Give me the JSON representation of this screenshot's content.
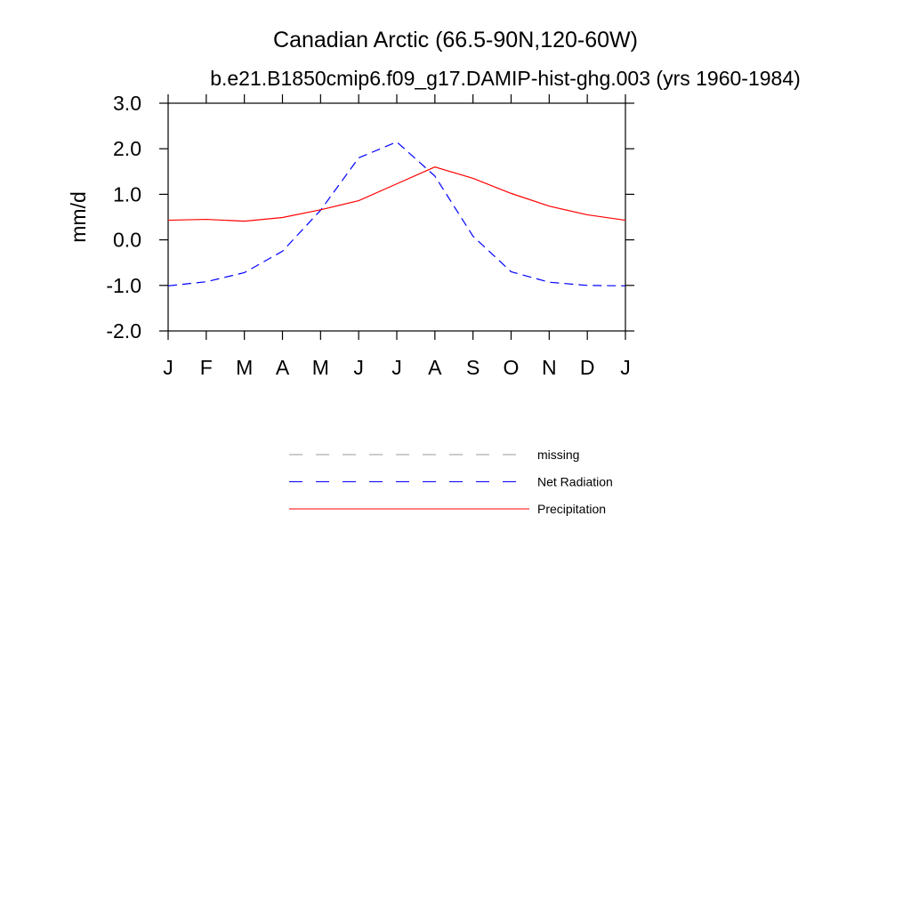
{
  "chart_data": {
    "type": "line",
    "title": "Canadian Arctic (66.5-90N,120-60W)",
    "subtitle": "b.e21.B1850cmip6.f09_g17.DAMIP-hist-ghg.003 (yrs 1960-1984)",
    "ylabel": "mm/d",
    "categories": [
      "J",
      "F",
      "M",
      "A",
      "M",
      "J",
      "J",
      "A",
      "S",
      "O",
      "N",
      "D",
      "J"
    ],
    "ylim": [
      -2.0,
      3.0
    ],
    "yticks": [
      {
        "value": 3,
        "label": "3.0"
      },
      {
        "value": 2,
        "label": "2.0"
      },
      {
        "value": 1,
        "label": "1.0"
      },
      {
        "value": 0,
        "label": "0.0"
      },
      {
        "value": -1,
        "label": "-1.0"
      },
      {
        "value": -2,
        "label": "-2.0"
      }
    ],
    "series": [
      {
        "name": "missing",
        "color": "#999999",
        "dash": true,
        "values": [
          null,
          null,
          null,
          null,
          null,
          null,
          null,
          null,
          null,
          null,
          null,
          null,
          null
        ]
      },
      {
        "name": "Net Radiation",
        "color": "#0000ff",
        "dash": true,
        "values": [
          -1.01,
          -0.92,
          -0.72,
          -0.25,
          0.65,
          1.8,
          2.15,
          1.4,
          0.08,
          -0.7,
          -0.93,
          -1.0,
          -1.01
        ]
      },
      {
        "name": "Precipitation",
        "color": "#ff0000",
        "dash": false,
        "values": [
          0.43,
          0.45,
          0.41,
          0.49,
          0.66,
          0.86,
          1.23,
          1.6,
          1.35,
          1.02,
          0.74,
          0.55,
          0.43
        ]
      }
    ]
  }
}
